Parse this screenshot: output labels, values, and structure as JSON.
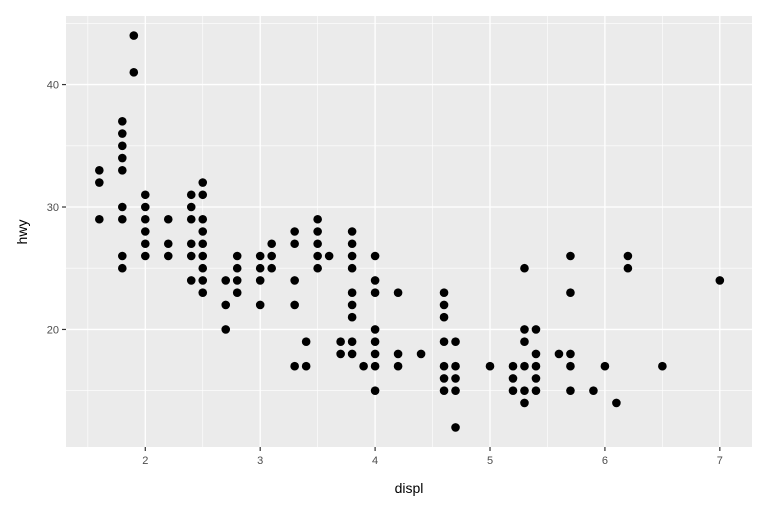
{
  "chart_data": {
    "type": "scatter",
    "xlabel": "displ",
    "ylabel": "hwy",
    "xlim": [
      1.31,
      7.28
    ],
    "ylim": [
      10.4,
      45.6
    ],
    "xticks": [
      2,
      3,
      4,
      5,
      6,
      7
    ],
    "yticks": [
      20,
      30,
      40
    ],
    "xminor": [
      1.5,
      2.5,
      3.5,
      4.5,
      5.5,
      6.5
    ],
    "yminor": [
      15,
      25,
      35,
      45
    ],
    "grid": true,
    "colors": {
      "panel": "#EBEBEB",
      "grid": "#FFFFFF",
      "point": "#000000",
      "text": "#4D4D4D"
    },
    "points": [
      [
        1.6,
        33
      ],
      [
        1.6,
        32
      ],
      [
        1.6,
        29
      ],
      [
        1.8,
        37
      ],
      [
        1.8,
        36
      ],
      [
        1.8,
        35
      ],
      [
        1.8,
        34
      ],
      [
        1.8,
        33
      ],
      [
        1.8,
        30
      ],
      [
        1.8,
        29
      ],
      [
        1.8,
        26
      ],
      [
        1.8,
        25
      ],
      [
        1.9,
        44
      ],
      [
        1.9,
        41
      ],
      [
        2.0,
        31
      ],
      [
        2.0,
        30
      ],
      [
        2.0,
        29
      ],
      [
        2.0,
        28
      ],
      [
        2.0,
        27
      ],
      [
        2.0,
        26
      ],
      [
        2.2,
        29
      ],
      [
        2.2,
        27
      ],
      [
        2.2,
        26
      ],
      [
        2.4,
        31
      ],
      [
        2.4,
        30
      ],
      [
        2.4,
        29
      ],
      [
        2.4,
        27
      ],
      [
        2.4,
        26
      ],
      [
        2.4,
        24
      ],
      [
        2.5,
        32
      ],
      [
        2.5,
        31
      ],
      [
        2.5,
        29
      ],
      [
        2.5,
        28
      ],
      [
        2.5,
        27
      ],
      [
        2.5,
        26
      ],
      [
        2.5,
        25
      ],
      [
        2.5,
        24
      ],
      [
        2.5,
        23
      ],
      [
        2.7,
        24
      ],
      [
        2.7,
        22
      ],
      [
        2.7,
        20
      ],
      [
        2.8,
        26
      ],
      [
        2.8,
        25
      ],
      [
        2.8,
        24
      ],
      [
        2.8,
        23
      ],
      [
        3.0,
        26
      ],
      [
        3.0,
        25
      ],
      [
        3.0,
        24
      ],
      [
        3.0,
        22
      ],
      [
        3.1,
        27
      ],
      [
        3.1,
        26
      ],
      [
        3.1,
        25
      ],
      [
        3.3,
        28
      ],
      [
        3.3,
        27
      ],
      [
        3.3,
        24
      ],
      [
        3.3,
        22
      ],
      [
        3.3,
        17
      ],
      [
        3.4,
        19
      ],
      [
        3.4,
        17
      ],
      [
        3.5,
        29
      ],
      [
        3.5,
        28
      ],
      [
        3.5,
        27
      ],
      [
        3.5,
        26
      ],
      [
        3.5,
        25
      ],
      [
        3.6,
        26
      ],
      [
        3.7,
        19
      ],
      [
        3.7,
        18
      ],
      [
        3.8,
        28
      ],
      [
        3.8,
        27
      ],
      [
        3.8,
        26
      ],
      [
        3.8,
        25
      ],
      [
        3.8,
        23
      ],
      [
        3.8,
        22
      ],
      [
        3.8,
        21
      ],
      [
        3.8,
        19
      ],
      [
        3.8,
        18
      ],
      [
        3.9,
        17
      ],
      [
        4.0,
        26
      ],
      [
        4.0,
        24
      ],
      [
        4.0,
        23
      ],
      [
        4.0,
        20
      ],
      [
        4.0,
        19
      ],
      [
        4.0,
        18
      ],
      [
        4.0,
        17
      ],
      [
        4.0,
        15
      ],
      [
        4.2,
        23
      ],
      [
        4.2,
        18
      ],
      [
        4.2,
        17
      ],
      [
        4.4,
        18
      ],
      [
        4.6,
        23
      ],
      [
        4.6,
        22
      ],
      [
        4.6,
        21
      ],
      [
        4.6,
        19
      ],
      [
        4.6,
        17
      ],
      [
        4.6,
        16
      ],
      [
        4.6,
        15
      ],
      [
        4.7,
        19
      ],
      [
        4.7,
        17
      ],
      [
        4.7,
        16
      ],
      [
        4.7,
        15
      ],
      [
        4.7,
        12
      ],
      [
        5.0,
        17
      ],
      [
        5.2,
        17
      ],
      [
        5.2,
        16
      ],
      [
        5.2,
        15
      ],
      [
        5.3,
        25
      ],
      [
        5.3,
        20
      ],
      [
        5.3,
        19
      ],
      [
        5.3,
        17
      ],
      [
        5.3,
        15
      ],
      [
        5.3,
        14
      ],
      [
        5.4,
        20
      ],
      [
        5.4,
        18
      ],
      [
        5.4,
        17
      ],
      [
        5.4,
        16
      ],
      [
        5.4,
        15
      ],
      [
        5.6,
        18
      ],
      [
        5.7,
        26
      ],
      [
        5.7,
        23
      ],
      [
        5.7,
        18
      ],
      [
        5.7,
        17
      ],
      [
        5.7,
        15
      ],
      [
        5.9,
        15
      ],
      [
        6.0,
        17
      ],
      [
        6.1,
        14
      ],
      [
        6.2,
        26
      ],
      [
        6.2,
        25
      ],
      [
        6.5,
        17
      ],
      [
        7.0,
        24
      ]
    ]
  }
}
